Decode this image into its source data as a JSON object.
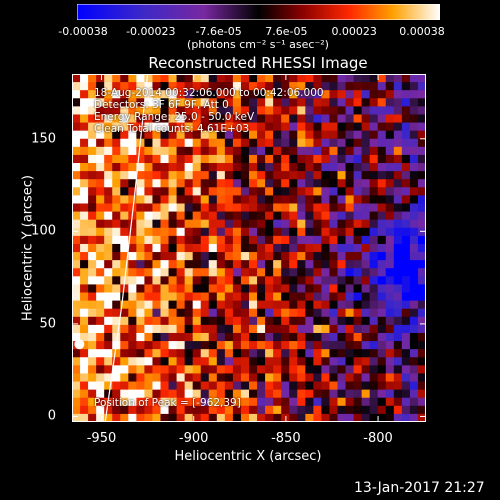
{
  "colorbar": {
    "ticks": [
      "-0.00038",
      "-0.00023",
      "-7.6e-05",
      "7.6e-05",
      "0.00023",
      "0.00038"
    ],
    "unit": "(photons cm⁻² s⁻¹ asec⁻²)",
    "range": [
      -0.00038,
      0.00038
    ],
    "colormap": "rainbow-to-hot"
  },
  "chart_data": {
    "type": "heatmap",
    "title": "Reconstructed RHESSI Image",
    "xlabel": "Heliocentric X (arcsec)",
    "ylabel": "Heliocentric Y (arcsec)",
    "xlim": [
      -966,
      -774
    ],
    "ylim": [
      -3,
      185
    ],
    "xticks": [
      "-950",
      "-900",
      "-850",
      "-800"
    ],
    "xtick_values": [
      -950,
      -900,
      -850,
      -800
    ],
    "yticks": [
      "0",
      "50",
      "100",
      "150"
    ],
    "ytick_values": [
      0,
      50,
      100,
      150
    ],
    "limb_line": [
      [
        -948,
        -3
      ],
      [
        -939,
        60
      ],
      [
        -932,
        120
      ],
      [
        -925,
        185
      ]
    ],
    "annotations": [
      "18-Aug-2014 00:32:06.000 to 00:42:06.000",
      "Detectors: 3F 6F 9F, Att 0",
      "Energy Range: 25.0 - 50.0 keV",
      "Clean    Total counts: 4.61E+03"
    ],
    "peak_label": "Position of Peak = [-962,39]",
    "peak": [
      -962,
      39
    ],
    "grid": false
  },
  "footer": {
    "date": "13-Jan-2017 21:27"
  }
}
